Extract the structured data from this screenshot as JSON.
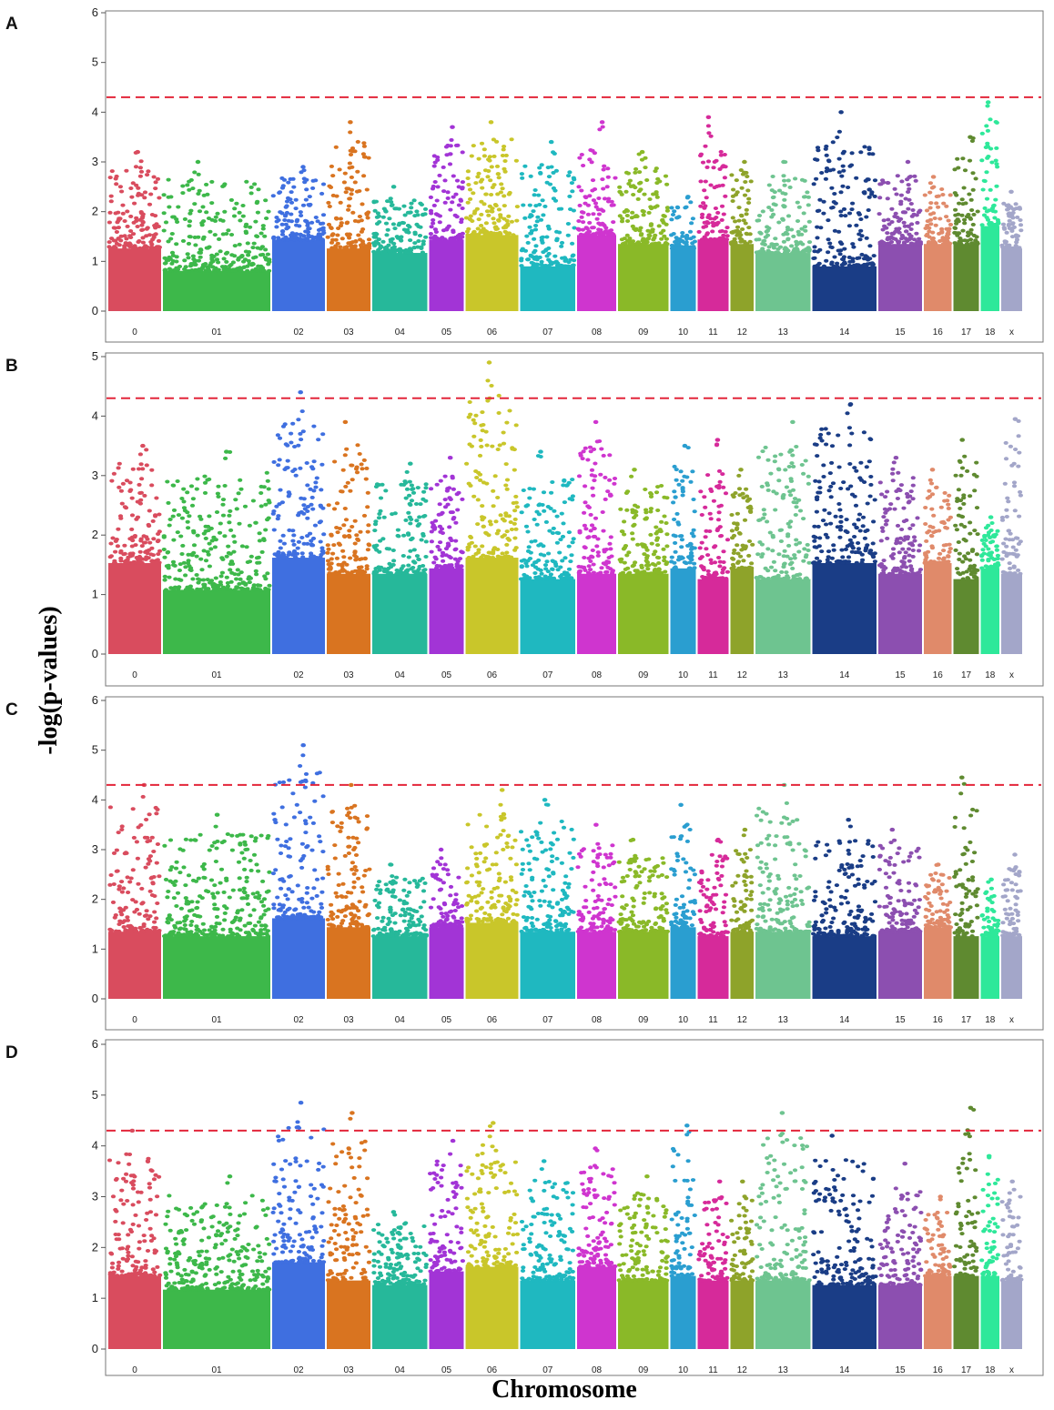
{
  "figure": {
    "ylabel": "-log(p-values)",
    "xlabel": "Chromosome"
  },
  "colors": {
    "threshold": "#e3263a",
    "chromosomes": [
      "#d94c5e",
      "#3db84a",
      "#3f6fe0",
      "#d97420",
      "#26b89a",
      "#a234d6",
      "#c9c62a",
      "#1fb8c0",
      "#cf35cf",
      "#8ab928",
      "#2a9ed0",
      "#d62a9a",
      "#8ea32a",
      "#6ec490",
      "#1a3d86",
      "#8c4fb0",
      "#e08a6a",
      "#5f8a30",
      "#2ee89a",
      "#a3a6c9"
    ]
  },
  "chart_data": [
    {
      "type": "scatter",
      "panel": "A",
      "title": "",
      "xlabel": "Chromosome",
      "ylabel": "-log(p-values)",
      "ylim": [
        0,
        6
      ],
      "yticks": [
        "0",
        "1",
        "2",
        "3",
        "4",
        "5",
        "6"
      ],
      "threshold": 4.3,
      "categories": [
        "0",
        "01",
        "02",
        "03",
        "04",
        "05",
        "06",
        "07",
        "08",
        "09",
        "10",
        "11",
        "12",
        "13",
        "14",
        "15",
        "16",
        "17",
        "18",
        "x"
      ],
      "relative_widths": [
        1.2,
        2.4,
        1.2,
        1.0,
        1.25,
        0.8,
        1.2,
        1.25,
        0.9,
        1.15,
        0.6,
        0.72,
        0.55,
        1.25,
        1.45,
        1.0,
        0.65,
        0.6,
        0.45,
        0.5
      ],
      "base_level": [
        1.4,
        0.9,
        1.6,
        1.4,
        1.3,
        1.6,
        1.7,
        1.0,
        1.7,
        1.5,
        1.4,
        1.6,
        1.5,
        1.3,
        1.0,
        1.5,
        1.5,
        1.5,
        1.9,
        1.4
      ],
      "max_values": [
        3.2,
        3.0,
        2.9,
        3.8,
        2.5,
        3.7,
        3.8,
        3.4,
        3.8,
        3.2,
        2.3,
        3.9,
        3.0,
        3.0,
        4.0,
        3.0,
        2.7,
        3.5,
        4.2,
        2.4
      ]
    },
    {
      "type": "scatter",
      "panel": "B",
      "title": "",
      "xlabel": "Chromosome",
      "ylabel": "-log(p-values)",
      "ylim": [
        0,
        5
      ],
      "yticks": [
        "0",
        "1",
        "2",
        "3",
        "4",
        "5"
      ],
      "threshold": 4.3,
      "categories": [
        "0",
        "01",
        "02",
        "03",
        "04",
        "05",
        "06",
        "07",
        "08",
        "09",
        "10",
        "11",
        "12",
        "13",
        "14",
        "15",
        "16",
        "17",
        "18",
        "x"
      ],
      "relative_widths": [
        1.2,
        2.4,
        1.2,
        1.0,
        1.25,
        0.8,
        1.2,
        1.25,
        0.9,
        1.15,
        0.6,
        0.72,
        0.55,
        1.25,
        1.45,
        1.0,
        0.65,
        0.6,
        0.45,
        0.5
      ],
      "base_level": [
        1.7,
        1.2,
        1.8,
        1.5,
        1.5,
        1.6,
        1.8,
        1.4,
        1.5,
        1.5,
        1.6,
        1.4,
        1.6,
        1.4,
        1.7,
        1.5,
        1.7,
        1.4,
        1.6,
        1.5
      ],
      "max_values": [
        3.5,
        3.4,
        4.4,
        3.9,
        3.2,
        3.3,
        4.9,
        3.4,
        3.9,
        3.1,
        3.5,
        3.6,
        3.1,
        3.9,
        4.2,
        3.3,
        3.1,
        3.6,
        2.3,
        3.95
      ]
    },
    {
      "type": "scatter",
      "panel": "C",
      "title": "",
      "xlabel": "Chromosome",
      "ylabel": "-log(p-values)",
      "ylim": [
        0,
        6
      ],
      "yticks": [
        "0",
        "1",
        "2",
        "3",
        "4",
        "5",
        "6"
      ],
      "threshold": 4.3,
      "categories": [
        "0",
        "01",
        "02",
        "03",
        "04",
        "05",
        "06",
        "07",
        "08",
        "09",
        "10",
        "11",
        "12",
        "13",
        "14",
        "15",
        "16",
        "17",
        "18",
        "x"
      ],
      "relative_widths": [
        1.2,
        2.4,
        1.2,
        1.0,
        1.25,
        0.8,
        1.2,
        1.25,
        0.9,
        1.15,
        0.6,
        0.72,
        0.55,
        1.25,
        1.45,
        1.0,
        0.65,
        0.6,
        0.45,
        0.5
      ],
      "base_level": [
        1.5,
        1.4,
        1.8,
        1.6,
        1.4,
        1.6,
        1.7,
        1.5,
        1.5,
        1.5,
        1.6,
        1.4,
        1.5,
        1.5,
        1.4,
        1.5,
        1.6,
        1.4,
        1.4,
        1.4
      ],
      "max_values": [
        4.3,
        3.7,
        5.1,
        4.3,
        2.7,
        3.0,
        4.2,
        4.0,
        3.5,
        3.2,
        3.9,
        3.2,
        3.4,
        4.3,
        3.6,
        3.4,
        2.7,
        4.45,
        2.4,
        2.9
      ]
    },
    {
      "type": "scatter",
      "panel": "D",
      "title": "",
      "xlabel": "Chromosome",
      "ylabel": "-log(p-values)",
      "ylim": [
        0,
        6
      ],
      "yticks": [
        "0",
        "1",
        "2",
        "3",
        "4",
        "5",
        "6"
      ],
      "threshold": 4.3,
      "categories": [
        "0",
        "01",
        "02",
        "03",
        "04",
        "05",
        "06",
        "07",
        "08",
        "09",
        "10",
        "11",
        "12",
        "13",
        "14",
        "15",
        "16",
        "17",
        "18",
        "x"
      ],
      "relative_widths": [
        1.2,
        2.4,
        1.2,
        1.0,
        1.25,
        0.8,
        1.2,
        1.25,
        0.9,
        1.15,
        0.6,
        0.72,
        0.55,
        1.25,
        1.45,
        1.0,
        0.65,
        0.6,
        0.45,
        0.5
      ],
      "base_level": [
        1.6,
        1.3,
        1.9,
        1.5,
        1.4,
        1.7,
        1.8,
        1.5,
        1.8,
        1.5,
        1.6,
        1.5,
        1.5,
        1.5,
        1.4,
        1.4,
        1.6,
        1.6,
        1.6,
        1.5
      ],
      "max_values": [
        4.3,
        3.4,
        4.85,
        4.65,
        2.7,
        4.1,
        4.45,
        3.7,
        3.95,
        3.4,
        4.4,
        3.3,
        3.3,
        4.65,
        4.2,
        3.65,
        3.0,
        4.75,
        3.8,
        3.3
      ]
    }
  ]
}
